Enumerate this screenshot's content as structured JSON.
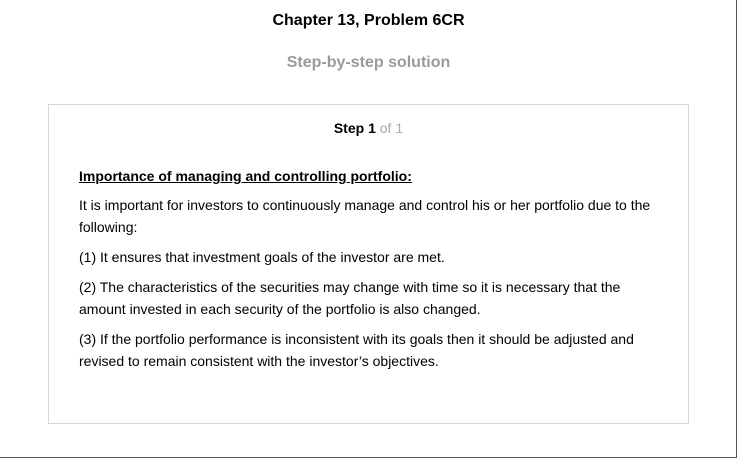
{
  "page": {
    "title": "Chapter 13, Problem 6CR",
    "subtitle": "Step-by-step solution"
  },
  "step": {
    "word": "Step",
    "number": "1",
    "of": "of",
    "total": "1"
  },
  "content": {
    "heading": "Importance of managing and controlling portfolio:",
    "paragraphs": [
      "It is important for investors to continuously manage and control his or her portfolio due to the following:",
      "(1) It ensures that investment goals of the investor are met.",
      "(2) The characteristics of the securities may change with time so it is necessary that the amount invested in each security of the portfolio is also changed.",
      "(3) If the portfolio performance is inconsistent with its goals then it should be adjusted and revised to remain consistent with the investor’s objectives."
    ]
  }
}
